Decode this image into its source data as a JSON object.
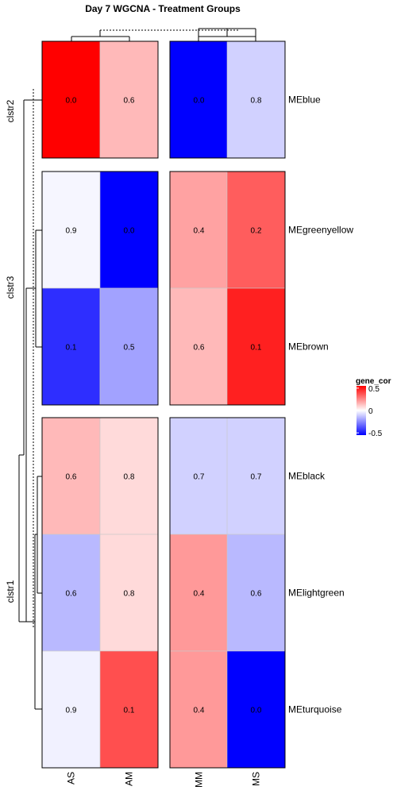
{
  "chart_data": {
    "type": "heatmap",
    "title": "Day 7 WGCNA - Treatment Groups",
    "columns": [
      "AS",
      "AM",
      "MM",
      "MS"
    ],
    "column_groups": [
      [
        "AS",
        "AM"
      ],
      [
        "MM",
        "MS"
      ]
    ],
    "rows": [
      "MEblue",
      "MEgreenyellow",
      "MEbrown",
      "MEblack",
      "MElightgreen",
      "MEturquoise"
    ],
    "row_clusters": [
      {
        "name": "clstr2",
        "rows": [
          "MEblue"
        ]
      },
      {
        "name": "clstr3",
        "rows": [
          "MEgreenyellow",
          "MEbrown"
        ]
      },
      {
        "name": "clstr1",
        "rows": [
          "MEblack",
          "MElightgreen",
          "MEturquoise"
        ]
      }
    ],
    "values": [
      [
        0.55,
        0.15,
        -0.55,
        -0.1
      ],
      [
        -0.02,
        -0.55,
        0.2,
        0.35
      ],
      [
        -0.45,
        -0.2,
        0.15,
        0.48
      ],
      [
        0.15,
        0.08,
        -0.1,
        -0.1
      ],
      [
        -0.15,
        0.08,
        0.22,
        -0.15
      ],
      [
        -0.03,
        0.38,
        0.22,
        -0.55
      ]
    ],
    "cell_labels": [
      [
        "0.0",
        "0.6",
        "0.0",
        "0.8"
      ],
      [
        "0.9",
        "0.0",
        "0.4",
        "0.2"
      ],
      [
        "0.1",
        "0.5",
        "0.6",
        "0.1"
      ],
      [
        "0.6",
        "0.8",
        "0.7",
        "0.7"
      ],
      [
        "0.6",
        "0.8",
        "0.4",
        "0.6"
      ],
      [
        "0.9",
        "0.1",
        "0.4",
        "0.0"
      ]
    ],
    "legend": {
      "title": "gene_cor",
      "min": -0.55,
      "max": 0.55,
      "ticks": [
        0.5,
        0,
        -0.5
      ],
      "tick_labels": [
        "0.5",
        "0",
        "-0.5"
      ],
      "colors": {
        "low": "#0000ff",
        "mid": "#ffffff",
        "high": "#ff0000"
      },
      "placement": "right"
    }
  }
}
